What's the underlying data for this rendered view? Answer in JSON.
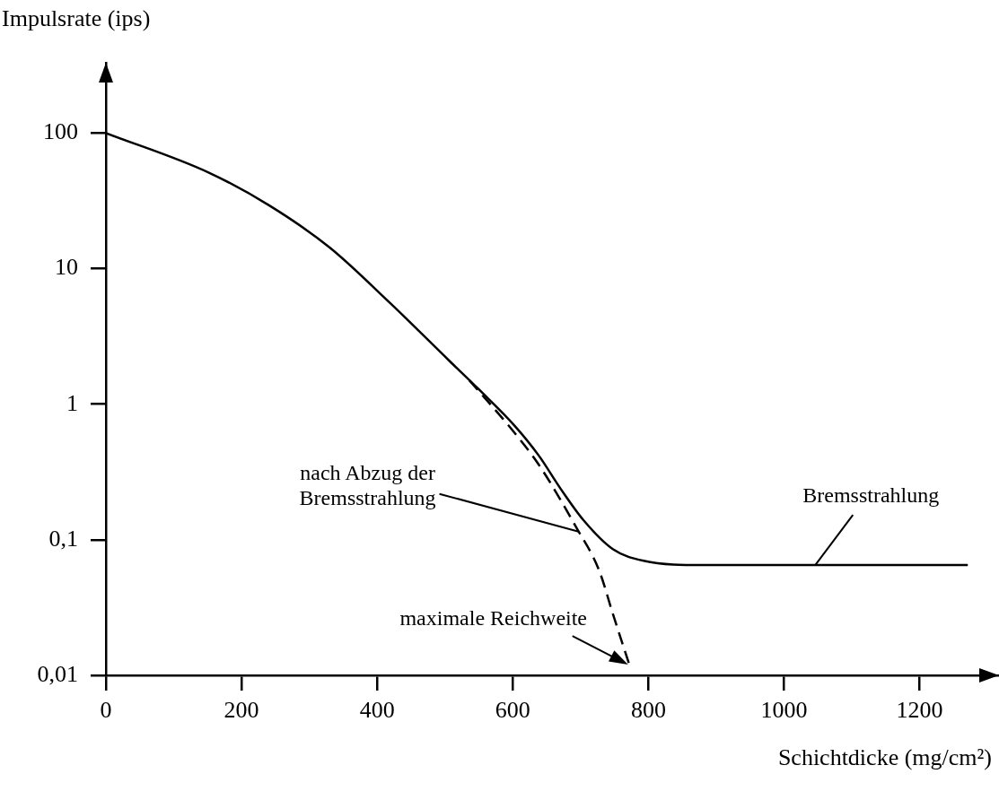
{
  "chart_data": {
    "type": "line",
    "xlabel": "Schichtdicke (mg/cm²)",
    "ylabel": "Impulsrate (ips)",
    "log": "y",
    "grid": false,
    "legend": false,
    "marker": "none",
    "xlim": [
      0,
      1317
    ],
    "xticks": [
      0,
      200,
      400,
      600,
      800,
      1000,
      1200
    ],
    "ylim": [
      0.01,
      330
    ],
    "yticks": [
      {
        "value": 0.01,
        "label": "0,01"
      },
      {
        "value": 0.1,
        "label": "0,1"
      },
      1,
      10,
      100
    ],
    "series": [
      {
        "color": "#000000",
        "line_style": "solid",
        "x": [
          0,
          152,
          241,
          330,
          417,
          506,
          549,
          602,
          638,
          670,
          704,
          748,
          793,
          880,
          1046,
          1271
        ],
        "values": [
          100,
          51,
          29.2,
          14.3,
          5.7,
          2.1,
          1.3,
          0.7,
          0.42,
          0.24,
          0.14,
          0.085,
          0.07,
          0.065,
          0.065,
          0.065
        ]
      },
      {
        "color": "#000000",
        "line_style": "dashed",
        "x": [
          536,
          602,
          638,
          695,
          727,
          748,
          773
        ],
        "values": [
          1.5,
          0.62,
          0.36,
          0.12,
          0.06,
          0.028,
          0.0115
        ]
      }
    ],
    "annotations": [
      {
        "text": "nach Abzug der\nBremsstrahlung",
        "x": 697,
        "y": 0.115
      },
      {
        "text": "Bremsstrahlung",
        "x": 1046,
        "y": 0.065
      },
      {
        "text": "maximale Reichweite",
        "x": 770,
        "y": 0.012
      }
    ]
  }
}
